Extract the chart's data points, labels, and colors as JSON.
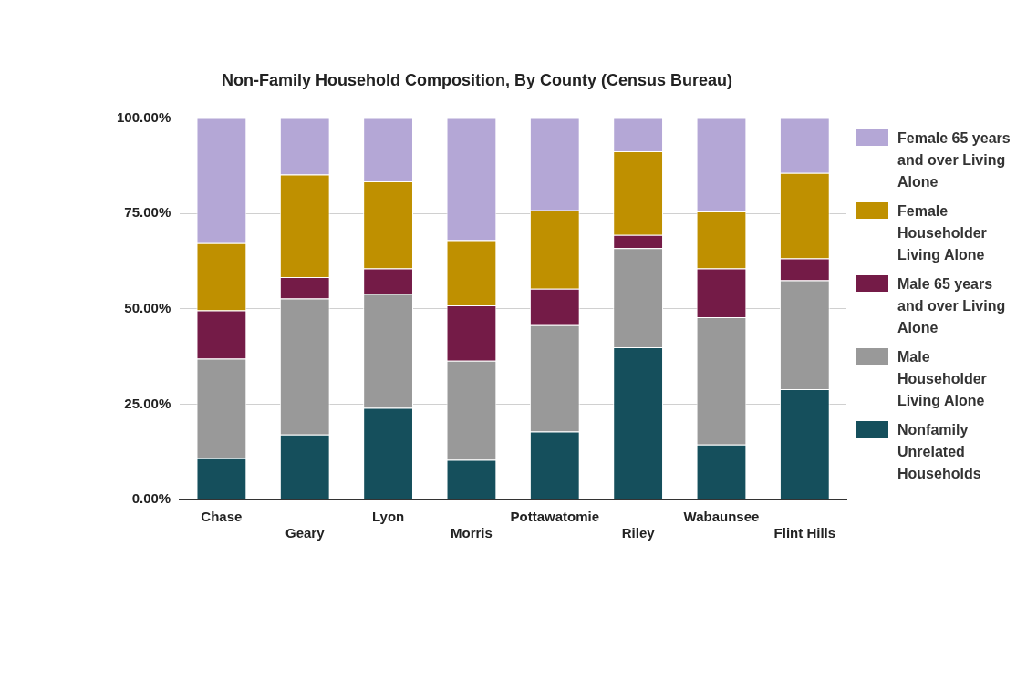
{
  "chart_data": {
    "type": "bar",
    "title": "Non-Family Household Composition, By County (Census Bureau)",
    "categories": [
      "Chase",
      "Geary",
      "Lyon",
      "Morris",
      "Pottawatomie",
      "Riley",
      "Wabaunsee",
      "Flint Hills"
    ],
    "stacked": true,
    "legend": "right",
    "grid": "y",
    "ylim": [
      0,
      100
    ],
    "yticks": [
      {
        "value": 0,
        "label": "0.00%"
      },
      {
        "value": 25,
        "label": "25.00%"
      },
      {
        "value": 50,
        "label": "50.00%"
      },
      {
        "value": 75,
        "label": "75.00%"
      },
      {
        "value": 100,
        "label": "100.00%"
      }
    ],
    "series": [
      {
        "name": "Nonfamily Unrelated Households",
        "color": "#154f5c",
        "values": [
          10.8,
          17.0,
          24.0,
          10.4,
          17.8,
          39.9,
          14.4,
          28.9
        ]
      },
      {
        "name": "Male Householder Living Alone",
        "color": "#999999",
        "values": [
          26.1,
          35.7,
          29.9,
          26.0,
          27.9,
          26.0,
          33.4,
          28.6
        ]
      },
      {
        "name": "Male 65 years and over Living Alone",
        "color": "#741b47",
        "values": [
          12.7,
          5.6,
          6.7,
          14.5,
          9.6,
          3.5,
          12.8,
          5.7
        ]
      },
      {
        "name": "Female Householder Living Alone",
        "color": "#bf9000",
        "values": [
          17.6,
          26.9,
          22.8,
          17.1,
          20.5,
          21.9,
          14.9,
          22.4
        ]
      },
      {
        "name": "Female 65 years and over Living Alone",
        "color": "#b4a7d6",
        "values": [
          32.8,
          14.8,
          16.6,
          32.0,
          24.2,
          8.7,
          24.5,
          14.4
        ]
      }
    ]
  }
}
